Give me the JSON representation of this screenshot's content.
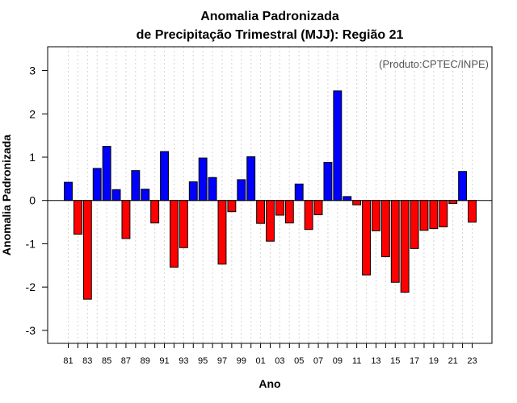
{
  "chart_data": {
    "type": "bar",
    "title_line1": "Anomalia Padronizada",
    "title_line2": "de Precipitação Trimestral (MJJ): Região 21",
    "credit": "(Produto:CPTEC/INPE)",
    "xlabel": "Ano",
    "ylabel": "Anomalia Padronizada",
    "ylim": [
      -3.3,
      3.55
    ],
    "yticks": [
      "-3",
      "-2",
      "-1",
      "0",
      "1",
      "2",
      "3"
    ],
    "xtick_labels": [
      "81",
      "83",
      "85",
      "87",
      "89",
      "91",
      "93",
      "95",
      "97",
      "99",
      "01",
      "03",
      "05",
      "07",
      "09",
      "11",
      "13",
      "15",
      "17",
      "19",
      "21",
      "23"
    ],
    "positive_color": "#0000ff",
    "negative_color": "#ff0000",
    "categories": [
      "1981",
      "1982",
      "1983",
      "1984",
      "1985",
      "1986",
      "1987",
      "1988",
      "1989",
      "1990",
      "1991",
      "1992",
      "1993",
      "1994",
      "1995",
      "1996",
      "1997",
      "1998",
      "1999",
      "2000",
      "2001",
      "2002",
      "2003",
      "2004",
      "2005",
      "2006",
      "2007",
      "2008",
      "2009",
      "2010",
      "2011",
      "2012",
      "2013",
      "2014",
      "2015",
      "2016",
      "2017",
      "2018",
      "2019",
      "2020",
      "2021",
      "2022",
      "2023"
    ],
    "values": [
      0.42,
      -0.78,
      -2.28,
      0.74,
      1.25,
      0.25,
      -0.88,
      0.69,
      0.26,
      -0.52,
      1.13,
      -1.54,
      -1.09,
      0.43,
      0.98,
      0.53,
      -1.47,
      -0.26,
      0.48,
      1.01,
      -0.53,
      -0.94,
      -0.34,
      -0.52,
      0.38,
      -0.67,
      -0.33,
      0.88,
      2.53,
      0.09,
      -0.1,
      -1.72,
      -0.7,
      -1.3,
      -1.89,
      -2.12,
      -1.11,
      -0.69,
      -0.65,
      -0.61,
      -0.07,
      0.67,
      -0.5
    ]
  }
}
